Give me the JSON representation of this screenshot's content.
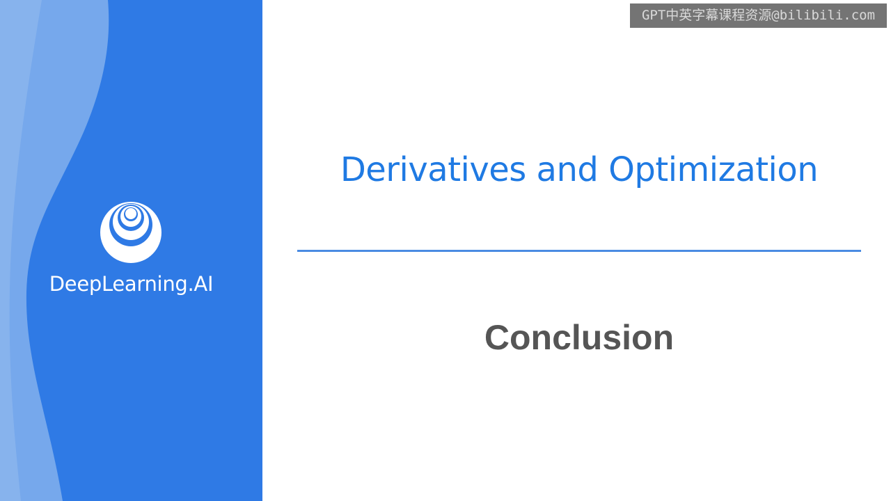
{
  "slide": {
    "title": "Derivatives and Optimization",
    "subtitle": "Conclusion"
  },
  "brand": {
    "name": "DeepLearning.AI",
    "logo_icon": "concentric-circles-logo-icon",
    "panel_color": "#2f7ae5",
    "title_color": "#1f7ae3"
  },
  "watermark": {
    "text": "GPT中英字幕课程资源@bilibili.com"
  }
}
